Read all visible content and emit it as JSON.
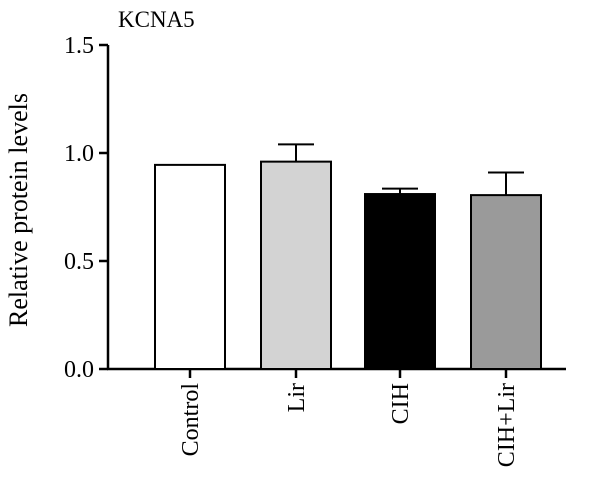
{
  "chart_data": {
    "type": "bar",
    "title": "KCNA5",
    "xlabel": "",
    "ylabel": "Relative protein levels",
    "categories": [
      "Control",
      "Lir",
      "CIH",
      "CIH+Lir"
    ],
    "values": [
      0.945,
      0.96,
      0.81,
      0.805
    ],
    "error_upper": [
      0.945,
      1.04,
      0.835,
      0.91
    ],
    "ylim": [
      0,
      1.5
    ],
    "yticks": [
      "0.0",
      "0.5",
      "1.0",
      "1.5"
    ],
    "bar_colors": [
      "#ffffff",
      "#d3d3d3",
      "#000000",
      "#9a9a9a"
    ],
    "grid": false,
    "legend": "none"
  }
}
